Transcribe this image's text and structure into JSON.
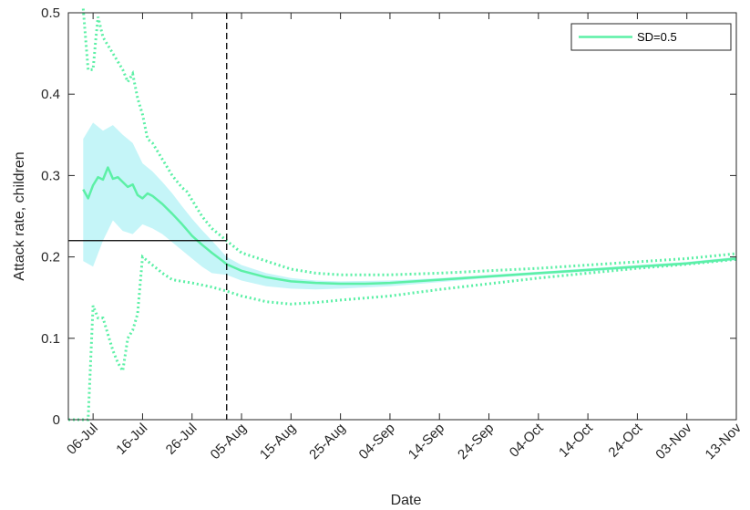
{
  "chart_data": {
    "type": "line",
    "title": "",
    "xlabel": "Date",
    "ylabel": "Attack rate, children",
    "ylim": [
      0,
      0.5
    ],
    "yticks": [
      0,
      0.1,
      0.2,
      0.3,
      0.4,
      0.5
    ],
    "ytick_labels": [
      "0",
      "0.1",
      "0.2",
      "0.3",
      "0.4",
      "0.5"
    ],
    "xlim": [
      "01-Jul",
      "13-Nov"
    ],
    "xticks": [
      "06-Jul",
      "16-Jul",
      "26-Jul",
      "05-Aug",
      "15-Aug",
      "25-Aug",
      "04-Sep",
      "14-Sep",
      "24-Sep",
      "04-Oct",
      "14-Oct",
      "24-Oct",
      "03-Nov",
      "13-Nov"
    ],
    "grid": false,
    "legend": {
      "entries": [
        "SD=0.5"
      ],
      "position": "top-right"
    },
    "reference_lines": {
      "horizontal": {
        "y": 0.22,
        "x_start": "01-Jul",
        "x_end": "02-Aug",
        "style": "solid"
      },
      "vertical": {
        "x": "02-Aug",
        "style": "dashed"
      }
    },
    "series": [
      {
        "name": "SD=0.5",
        "role": "mean",
        "color": "#5cf0a6",
        "x": [
          "04-Jul",
          "05-Jul",
          "06-Jul",
          "07-Jul",
          "08-Jul",
          "09-Jul",
          "10-Jul",
          "11-Jul",
          "12-Jul",
          "13-Jul",
          "14-Jul",
          "15-Jul",
          "16-Jul",
          "17-Jul",
          "18-Jul",
          "20-Jul",
          "22-Jul",
          "24-Jul",
          "26-Jul",
          "28-Jul",
          "30-Jul",
          "01-Aug",
          "02-Aug",
          "05-Aug",
          "10-Aug",
          "15-Aug",
          "20-Aug",
          "25-Aug",
          "30-Aug",
          "04-Sep",
          "14-Sep",
          "24-Sep",
          "04-Oct",
          "14-Oct",
          "24-Oct",
          "03-Nov",
          "13-Nov"
        ],
        "values": [
          0.283,
          0.272,
          0.288,
          0.298,
          0.295,
          0.31,
          0.296,
          0.298,
          0.292,
          0.286,
          0.289,
          0.276,
          0.272,
          0.278,
          0.275,
          0.265,
          0.253,
          0.24,
          0.226,
          0.215,
          0.205,
          0.196,
          0.191,
          0.183,
          0.175,
          0.17,
          0.168,
          0.167,
          0.167,
          0.168,
          0.172,
          0.176,
          0.18,
          0.184,
          0.188,
          0.192,
          0.198
        ]
      },
      {
        "name": "",
        "role": "band-upper",
        "color": "#7ee8f0",
        "x": [
          "04-Jul",
          "06-Jul",
          "08-Jul",
          "10-Jul",
          "12-Jul",
          "14-Jul",
          "16-Jul",
          "18-Jul",
          "20-Jul",
          "22-Jul",
          "24-Jul",
          "26-Jul",
          "28-Jul",
          "30-Jul",
          "02-Aug",
          "05-Aug",
          "10-Aug",
          "15-Aug",
          "20-Aug",
          "25-Aug",
          "04-Sep",
          "14-Sep",
          "24-Sep",
          "04-Oct",
          "14-Oct",
          "24-Oct",
          "03-Nov",
          "13-Nov"
        ],
        "values": [
          0.345,
          0.365,
          0.355,
          0.362,
          0.35,
          0.34,
          0.315,
          0.305,
          0.292,
          0.278,
          0.262,
          0.247,
          0.233,
          0.22,
          0.2,
          0.19,
          0.18,
          0.174,
          0.171,
          0.17,
          0.171,
          0.174,
          0.178,
          0.182,
          0.186,
          0.19,
          0.194,
          0.2
        ]
      },
      {
        "name": "",
        "role": "band-lower",
        "color": "#7ee8f0",
        "x": [
          "04-Jul",
          "06-Jul",
          "08-Jul",
          "10-Jul",
          "12-Jul",
          "14-Jul",
          "16-Jul",
          "18-Jul",
          "20-Jul",
          "22-Jul",
          "24-Jul",
          "26-Jul",
          "28-Jul",
          "30-Jul",
          "02-Aug",
          "05-Aug",
          "10-Aug",
          "15-Aug",
          "20-Aug",
          "25-Aug",
          "04-Sep",
          "14-Sep",
          "24-Sep",
          "04-Oct",
          "14-Oct",
          "24-Oct",
          "03-Nov",
          "13-Nov"
        ],
        "values": [
          0.195,
          0.188,
          0.22,
          0.245,
          0.232,
          0.228,
          0.24,
          0.235,
          0.228,
          0.218,
          0.208,
          0.198,
          0.188,
          0.18,
          0.178,
          0.171,
          0.164,
          0.161,
          0.16,
          0.161,
          0.164,
          0.169,
          0.174,
          0.178,
          0.182,
          0.186,
          0.19,
          0.196
        ]
      },
      {
        "name": "",
        "role": "upper-dotted",
        "color": "#5cf0a6",
        "x": [
          "04-Jul",
          "05-Jul",
          "06-Jul",
          "06.5-Jul",
          "07-Jul",
          "08-Jul",
          "10-Jul",
          "12-Jul",
          "13-Jul",
          "14-Jul",
          "15-Jul",
          "16-Jul",
          "17-Jul",
          "18-Jul",
          "20-Jul",
          "22-Jul",
          "24-Jul",
          "25-Jul",
          "26-Jul",
          "28-Jul",
          "30-Jul",
          "02-Aug",
          "05-Aug",
          "10-Aug",
          "15-Aug",
          "20-Aug",
          "25-Aug",
          "04-Sep",
          "14-Sep",
          "24-Sep",
          "04-Oct",
          "14-Oct",
          "24-Oct",
          "03-Nov",
          "13-Nov"
        ],
        "values": [
          0.505,
          0.43,
          0.43,
          0.465,
          0.495,
          0.47,
          0.45,
          0.43,
          0.415,
          0.425,
          0.395,
          0.375,
          0.345,
          0.34,
          0.32,
          0.3,
          0.285,
          0.28,
          0.27,
          0.25,
          0.235,
          0.22,
          0.205,
          0.195,
          0.185,
          0.18,
          0.178,
          0.178,
          0.18,
          0.183,
          0.186,
          0.19,
          0.194,
          0.198,
          0.204
        ]
      },
      {
        "name": "",
        "role": "lower-dotted",
        "color": "#5cf0a6",
        "x": [
          "01-Jul",
          "03-Jul",
          "05-Jul",
          "06-Jul",
          "07-Jul",
          "08-Jul",
          "09-Jul",
          "10-Jul",
          "11-Jul",
          "12-Jul",
          "13-Jul",
          "14-Jul",
          "15-Jul",
          "16-Jul",
          "17-Jul",
          "18-Jul",
          "20-Jul",
          "22-Jul",
          "26-Jul",
          "30-Jul",
          "02-Aug",
          "05-Aug",
          "10-Aug",
          "15-Aug",
          "20-Aug",
          "25-Aug",
          "04-Sep",
          "14-Sep",
          "24-Sep",
          "04-Oct",
          "14-Oct",
          "24-Oct",
          "03-Nov",
          "13-Nov"
        ],
        "values": [
          0.0,
          0.0,
          0.0,
          0.14,
          0.125,
          0.125,
          0.105,
          0.085,
          0.07,
          0.06,
          0.1,
          0.11,
          0.13,
          0.2,
          0.195,
          0.19,
          0.18,
          0.172,
          0.168,
          0.163,
          0.158,
          0.152,
          0.145,
          0.142,
          0.144,
          0.147,
          0.152,
          0.16,
          0.167,
          0.174,
          0.18,
          0.186,
          0.191,
          0.197
        ]
      }
    ]
  }
}
